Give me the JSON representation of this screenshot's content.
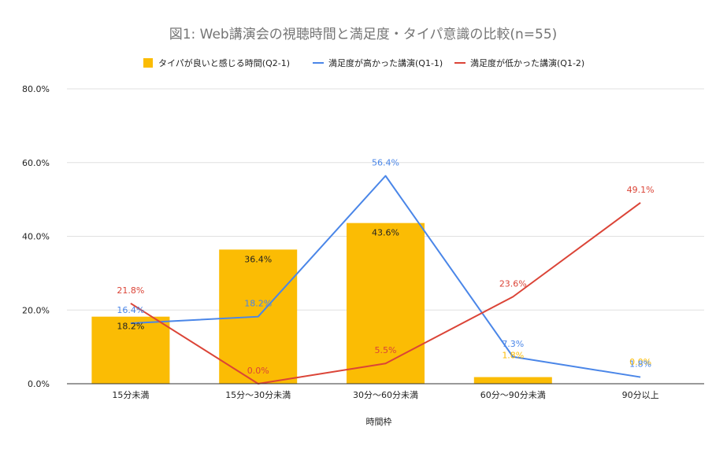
{
  "chart_data": {
    "type": "bar",
    "title": "図1: Web講演会の視聴時間と満足度・タイパ意識の比較(n=55)",
    "xlabel": "時間枠",
    "ylabel": "",
    "ylim": [
      0,
      80
    ],
    "y_ticks": [
      "0.0%",
      "20.0%",
      "40.0%",
      "60.0%",
      "80.0%"
    ],
    "grid": true,
    "legend": "top",
    "categories": [
      "15分未満",
      "15分〜30分未満",
      "30分〜60分未満",
      "60分〜90分未満",
      "90分以上"
    ],
    "series": [
      {
        "name": "タイパが良いと感じる時間(Q2-1)",
        "kind": "bar",
        "color": "#fbbc04",
        "values": [
          18.2,
          36.4,
          43.6,
          1.8,
          0.0
        ],
        "labels": [
          "18.2%",
          "36.4%",
          "43.6%",
          "1.8%",
          "0.0%"
        ]
      },
      {
        "name": "満足度が高かった講演(Q1-1)",
        "kind": "line",
        "color": "#4a86e8",
        "values": [
          16.4,
          18.2,
          56.4,
          7.3,
          1.8
        ],
        "labels": [
          "16.4%",
          "18.2%",
          "56.4%",
          "7.3%",
          "1.8%"
        ]
      },
      {
        "name": "満足度が低かった講演(Q1-2)",
        "kind": "line",
        "color": "#db4437",
        "values": [
          21.8,
          0.0,
          5.5,
          23.6,
          49.1
        ],
        "labels": [
          "21.8%",
          "0.0%",
          "5.5%",
          "23.6%",
          "49.1%"
        ]
      }
    ]
  }
}
